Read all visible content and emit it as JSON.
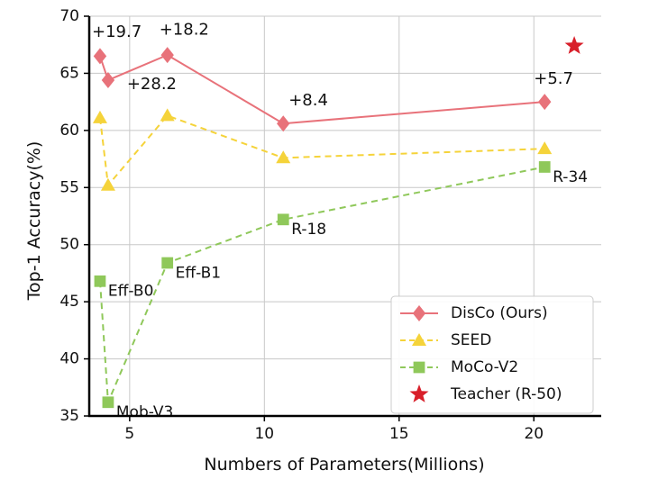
{
  "chart_data": {
    "type": "line",
    "xlabel": "Numbers of Parameters(Millions)",
    "ylabel": "Top-1 Accuracy(%)",
    "xlim": [
      3.5,
      22.5
    ],
    "ylim": [
      35,
      70
    ],
    "xticks": [
      5,
      10,
      15,
      20
    ],
    "yticks": [
      35,
      40,
      45,
      50,
      55,
      60,
      65,
      70
    ],
    "grid": true,
    "legend_position": "bottom-right",
    "series": [
      {
        "name": "DisCo (Ours)",
        "marker": "diamond",
        "line": "solid",
        "color": "#e8727a",
        "x": [
          3.9,
          4.2,
          6.4,
          10.7,
          20.4
        ],
        "y": [
          66.5,
          64.4,
          66.6,
          60.6,
          62.5
        ]
      },
      {
        "name": "SEED",
        "marker": "triangle",
        "line": "dashed",
        "color": "#f5d33a",
        "x": [
          3.9,
          4.2,
          6.4,
          10.7,
          20.4
        ],
        "y": [
          61.1,
          55.2,
          61.3,
          57.6,
          58.4
        ]
      },
      {
        "name": "MoCo-V2",
        "marker": "square",
        "line": "dashed",
        "color": "#8fc85a",
        "x": [
          3.9,
          4.2,
          6.4,
          10.7,
          20.4
        ],
        "y": [
          46.8,
          36.2,
          48.4,
          52.2,
          56.8
        ]
      },
      {
        "name": "Teacher (R-50)",
        "marker": "star",
        "line": "none",
        "color": "#d81f2a",
        "x": [
          21.5
        ],
        "y": [
          67.4
        ]
      }
    ],
    "annotations": [
      {
        "text": "+19.7",
        "x": 3.6,
        "y": 68.2
      },
      {
        "text": "+18.2",
        "x": 6.1,
        "y": 68.4
      },
      {
        "text": "+28.2",
        "x": 4.9,
        "y": 63.6
      },
      {
        "text": "+8.4",
        "x": 10.9,
        "y": 62.2
      },
      {
        "text": "+5.7",
        "x": 20.0,
        "y": 64.1
      }
    ],
    "model_labels": [
      {
        "text": "Eff-B0",
        "x": 4.2,
        "y": 45.9
      },
      {
        "text": "Mob-V3",
        "x": 4.5,
        "y": 35.3
      },
      {
        "text": "Eff-B1",
        "x": 6.7,
        "y": 47.5
      },
      {
        "text": "R-18",
        "x": 11.0,
        "y": 51.3
      },
      {
        "text": "R-34",
        "x": 20.7,
        "y": 55.9
      }
    ]
  }
}
